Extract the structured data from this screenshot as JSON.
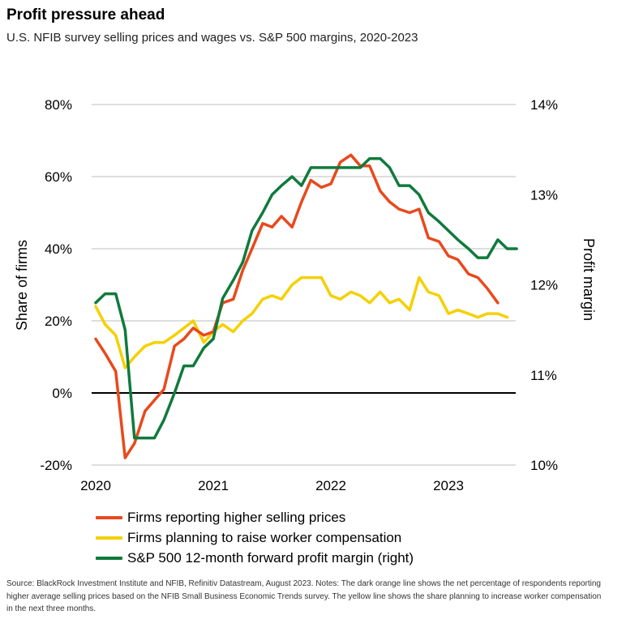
{
  "title": "Profit pressure ahead",
  "subtitle": "U.S. NFIB survey selling prices and wages vs. S&P 500 margins, 2020-2023",
  "source": "Source: BlackRock Investment Institute and NFIB, Refinitiv Datastream, August 2023. Notes: The dark orange line shows the net percentage of respondents reporting higher average selling prices based on the NFIB Small Business Economic Trends survey. The yellow line shows the share planning to increase worker compensation in the next three months.",
  "chart_data": {
    "type": "line",
    "title": "Profit pressure ahead",
    "subtitle": "U.S. NFIB survey selling prices and wages vs. S&P 500 margins, 2020-2023",
    "xlabel": "",
    "ylabel": "Share of firms",
    "ylabel_right": "Profit margin",
    "x_ticks": [
      2020,
      2021,
      2022,
      2023
    ],
    "xlim": [
      2020.0,
      2023.6
    ],
    "ylim": [
      -20,
      80
    ],
    "ylim_right": [
      10,
      14
    ],
    "y_ticks": [
      "-20%",
      "0%",
      "20%",
      "40%",
      "60%",
      "80%"
    ],
    "y_ticks_right": [
      "10%",
      "11%",
      "12%",
      "13%",
      "14%"
    ],
    "grid": true,
    "legend_position": "bottom-left",
    "colors": {
      "selling": "#e8491d",
      "compensation": "#f5d000",
      "margin": "#0f7a3c",
      "zero_line": "#000000",
      "grid": "#bdbdbd"
    },
    "series": [
      {
        "name": "Firms reporting higher selling prices",
        "axis": "left",
        "color": "#e8491d",
        "points": [
          [
            2020.0,
            15
          ],
          [
            2020.08,
            11
          ],
          [
            2020.17,
            6
          ],
          [
            2020.25,
            -18
          ],
          [
            2020.33,
            -14
          ],
          [
            2020.42,
            -5
          ],
          [
            2020.5,
            -2
          ],
          [
            2020.58,
            1
          ],
          [
            2020.67,
            13
          ],
          [
            2020.75,
            15
          ],
          [
            2020.83,
            18
          ],
          [
            2020.92,
            16
          ],
          [
            2021.0,
            17
          ],
          [
            2021.08,
            25
          ],
          [
            2021.17,
            26
          ],
          [
            2021.25,
            34
          ],
          [
            2021.33,
            40
          ],
          [
            2021.42,
            47
          ],
          [
            2021.5,
            46
          ],
          [
            2021.58,
            49
          ],
          [
            2021.67,
            46
          ],
          [
            2021.75,
            53
          ],
          [
            2021.83,
            59
          ],
          [
            2021.92,
            57
          ],
          [
            2022.0,
            58
          ],
          [
            2022.08,
            64
          ],
          [
            2022.17,
            66
          ],
          [
            2022.25,
            63
          ],
          [
            2022.33,
            63
          ],
          [
            2022.42,
            56
          ],
          [
            2022.5,
            53
          ],
          [
            2022.58,
            51
          ],
          [
            2022.67,
            50
          ],
          [
            2022.75,
            51
          ],
          [
            2022.83,
            43
          ],
          [
            2022.92,
            42
          ],
          [
            2023.0,
            38
          ],
          [
            2023.08,
            37
          ],
          [
            2023.17,
            33
          ],
          [
            2023.25,
            32
          ],
          [
            2023.33,
            29
          ],
          [
            2023.42,
            25
          ]
        ]
      },
      {
        "name": "Firms planning to raise worker compensation",
        "axis": "left",
        "color": "#f5d000",
        "points": [
          [
            2020.0,
            24
          ],
          [
            2020.08,
            19
          ],
          [
            2020.17,
            16
          ],
          [
            2020.25,
            7
          ],
          [
            2020.33,
            10
          ],
          [
            2020.42,
            13
          ],
          [
            2020.5,
            14
          ],
          [
            2020.58,
            14
          ],
          [
            2020.67,
            16
          ],
          [
            2020.75,
            18
          ],
          [
            2020.83,
            20
          ],
          [
            2020.92,
            14
          ],
          [
            2021.0,
            17
          ],
          [
            2021.08,
            19
          ],
          [
            2021.17,
            17
          ],
          [
            2021.25,
            20
          ],
          [
            2021.33,
            22
          ],
          [
            2021.42,
            26
          ],
          [
            2021.5,
            27
          ],
          [
            2021.58,
            26
          ],
          [
            2021.67,
            30
          ],
          [
            2021.75,
            32
          ],
          [
            2021.83,
            32
          ],
          [
            2021.92,
            32
          ],
          [
            2022.0,
            27
          ],
          [
            2022.08,
            26
          ],
          [
            2022.17,
            28
          ],
          [
            2022.25,
            27
          ],
          [
            2022.33,
            25
          ],
          [
            2022.42,
            28
          ],
          [
            2022.5,
            25
          ],
          [
            2022.58,
            26
          ],
          [
            2022.67,
            23
          ],
          [
            2022.75,
            32
          ],
          [
            2022.83,
            28
          ],
          [
            2022.92,
            27
          ],
          [
            2023.0,
            22
          ],
          [
            2023.08,
            23
          ],
          [
            2023.17,
            22
          ],
          [
            2023.25,
            21
          ],
          [
            2023.33,
            22
          ],
          [
            2023.42,
            22
          ],
          [
            2023.5,
            21
          ]
        ]
      },
      {
        "name": "S&P 500 12-month forward profit margin (right)",
        "axis": "right",
        "color": "#0f7a3c",
        "points": [
          [
            2020.0,
            11.8
          ],
          [
            2020.08,
            11.9
          ],
          [
            2020.17,
            11.9
          ],
          [
            2020.25,
            11.5
          ],
          [
            2020.33,
            10.3
          ],
          [
            2020.42,
            10.3
          ],
          [
            2020.5,
            10.3
          ],
          [
            2020.58,
            10.5
          ],
          [
            2020.67,
            10.8
          ],
          [
            2020.75,
            11.1
          ],
          [
            2020.83,
            11.1
          ],
          [
            2020.92,
            11.3
          ],
          [
            2021.0,
            11.4
          ],
          [
            2021.08,
            11.85
          ],
          [
            2021.17,
            12.05
          ],
          [
            2021.25,
            12.25
          ],
          [
            2021.33,
            12.6
          ],
          [
            2021.42,
            12.8
          ],
          [
            2021.5,
            13.0
          ],
          [
            2021.58,
            13.1
          ],
          [
            2021.67,
            13.2
          ],
          [
            2021.75,
            13.1
          ],
          [
            2021.83,
            13.3
          ],
          [
            2021.92,
            13.3
          ],
          [
            2022.0,
            13.3
          ],
          [
            2022.08,
            13.3
          ],
          [
            2022.17,
            13.3
          ],
          [
            2022.25,
            13.3
          ],
          [
            2022.33,
            13.4
          ],
          [
            2022.42,
            13.4
          ],
          [
            2022.5,
            13.3
          ],
          [
            2022.58,
            13.1
          ],
          [
            2022.67,
            13.1
          ],
          [
            2022.75,
            13.0
          ],
          [
            2022.83,
            12.8
          ],
          [
            2022.92,
            12.7
          ],
          [
            2023.0,
            12.6
          ],
          [
            2023.08,
            12.5
          ],
          [
            2023.17,
            12.4
          ],
          [
            2023.25,
            12.3
          ],
          [
            2023.33,
            12.3
          ],
          [
            2023.42,
            12.5
          ],
          [
            2023.5,
            12.4
          ],
          [
            2023.58,
            12.4
          ]
        ]
      }
    ]
  }
}
